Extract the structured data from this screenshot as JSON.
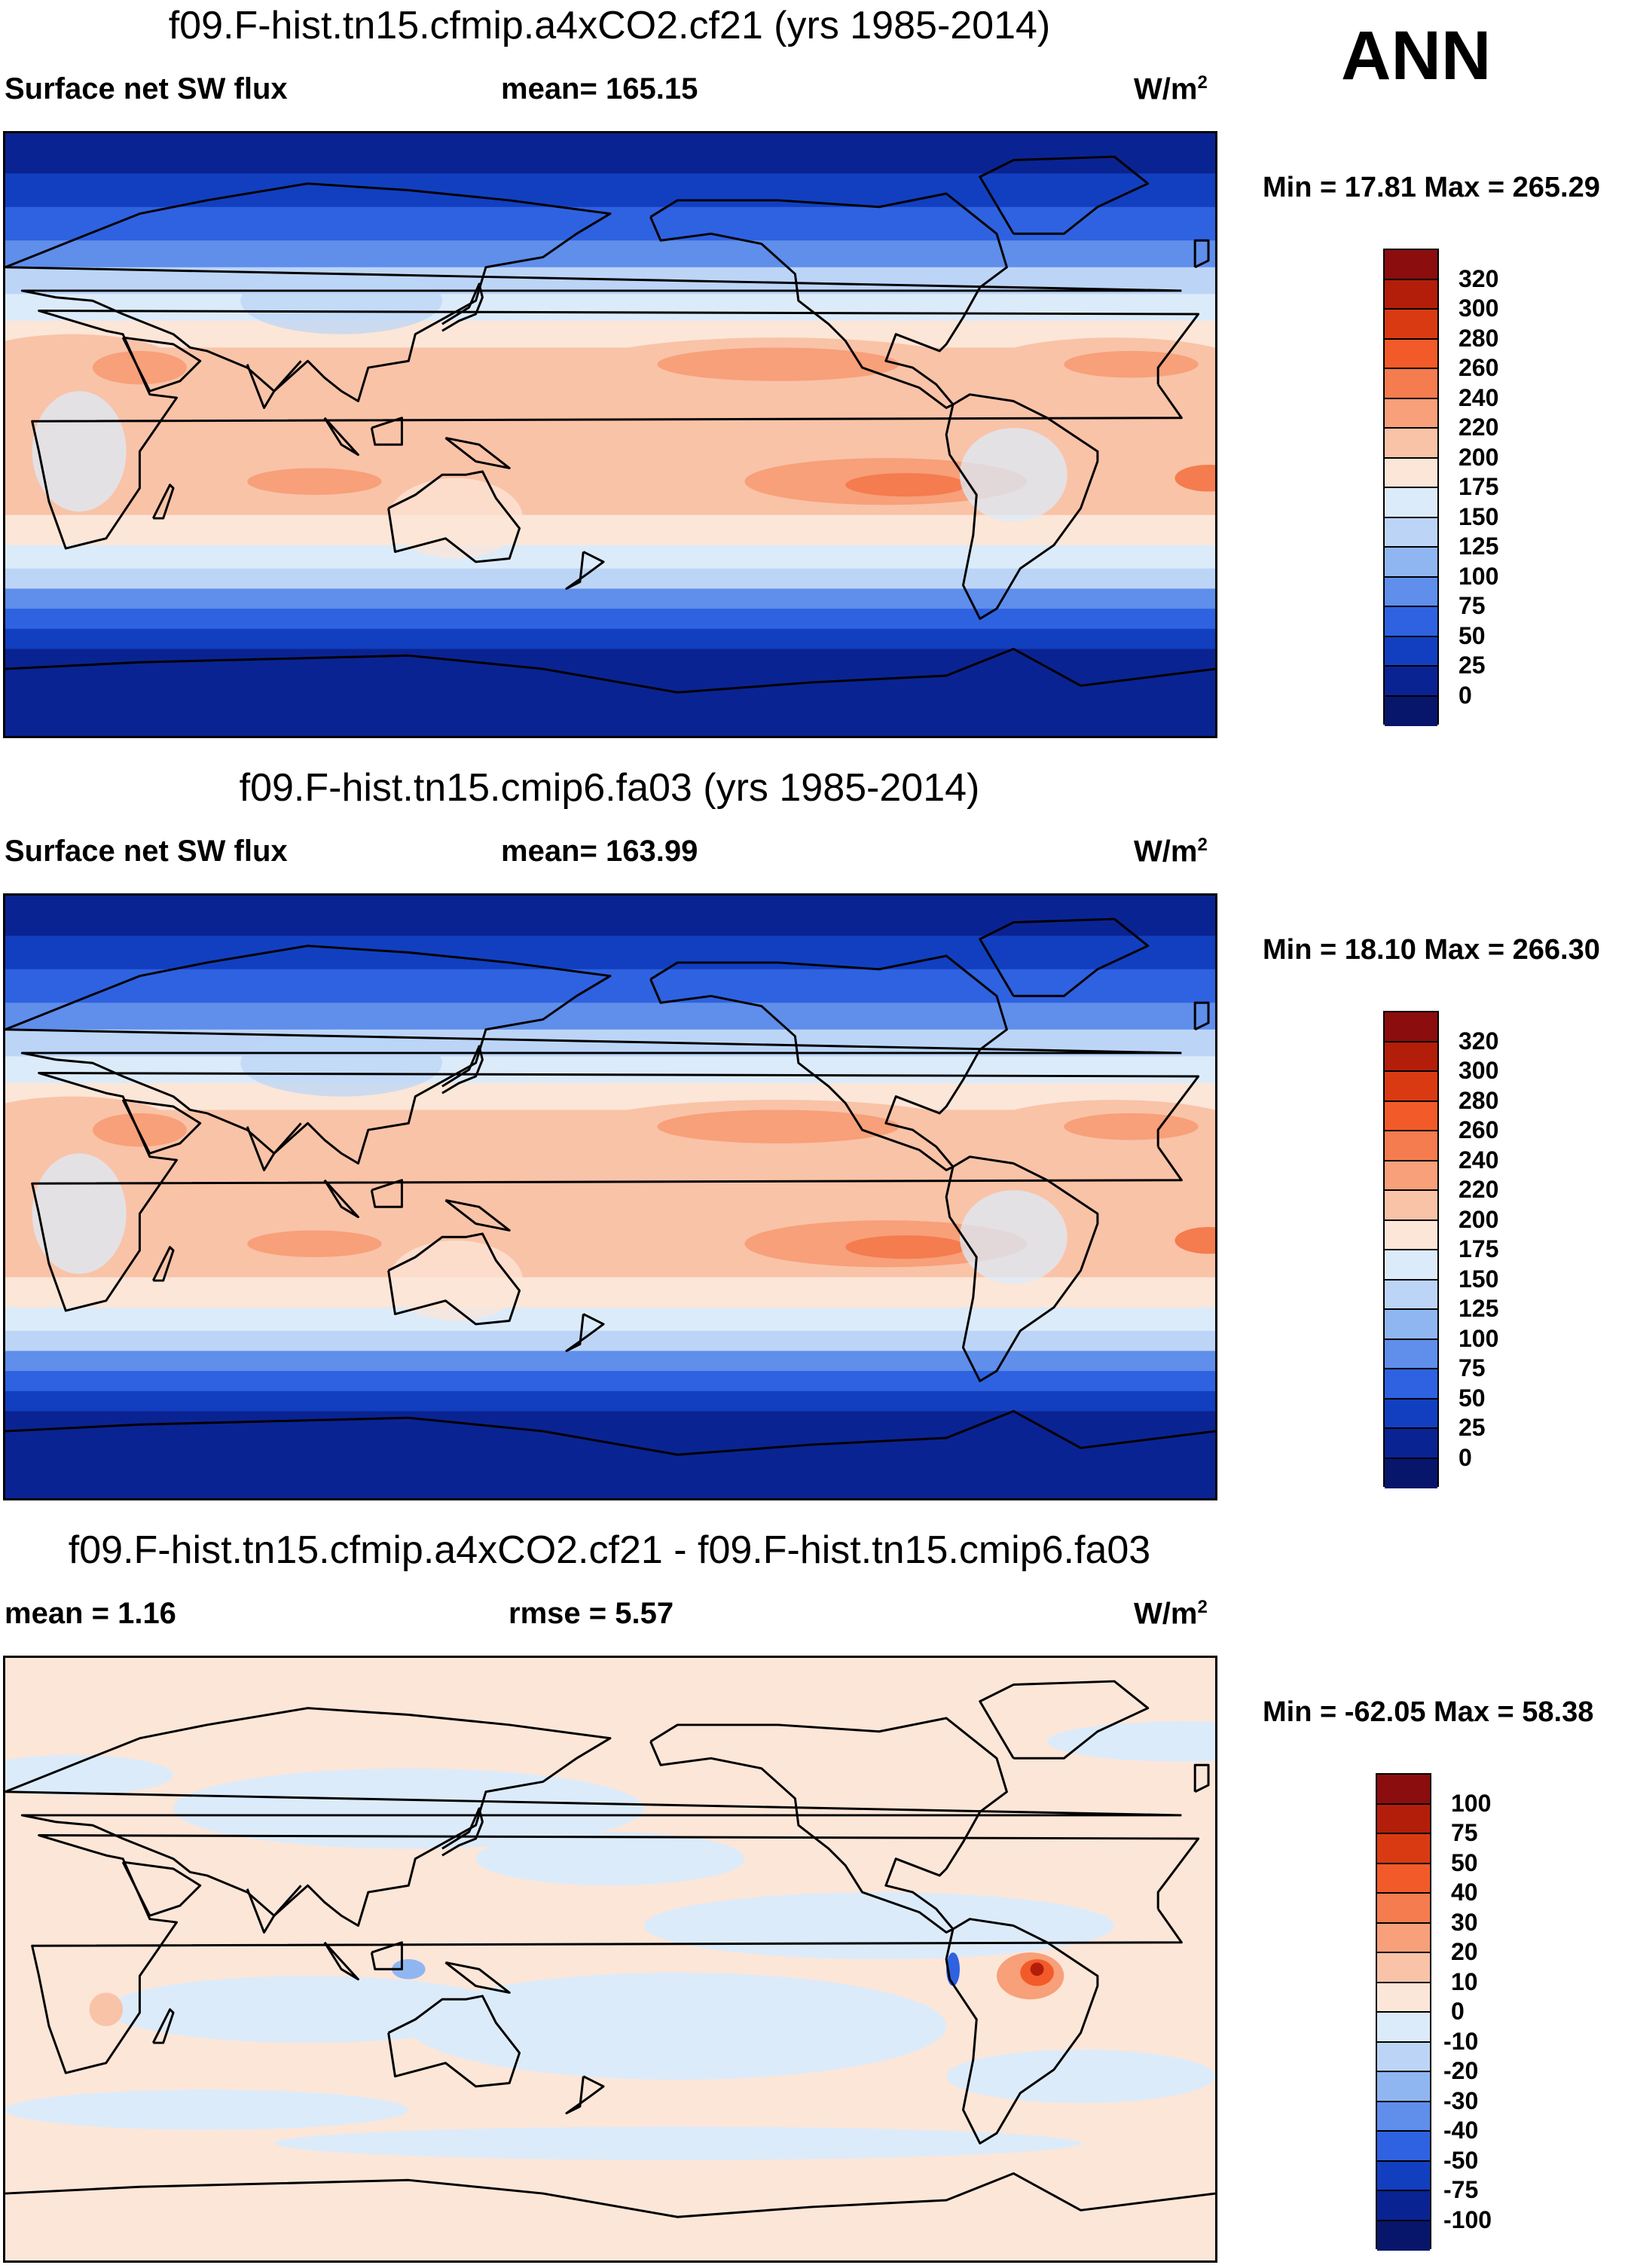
{
  "season": "ANN",
  "panels": [
    {
      "id": "p1",
      "title": "f09.F-hist.tn15.cfmip.a4xCO2.cf21 (yrs 1985-2014)",
      "left_label": "Surface net SW flux",
      "center_label": "mean= 165.15",
      "unit": "W/m",
      "unit_exp": "2",
      "minmax": "Min =  17.81 Max = 265.29",
      "field_kind": "abs",
      "variant": 1,
      "colorbar": {
        "levels": [
          "320",
          "300",
          "280",
          "260",
          "240",
          "220",
          "200",
          "175",
          "150",
          "125",
          "100",
          "75",
          "50",
          "25",
          "0"
        ],
        "colors": [
          "#8B0D0D",
          "#B31E0A",
          "#DA3A12",
          "#F25B29",
          "#F47C4E",
          "#F7A07A",
          "#F9C3A8",
          "#FCE6D8",
          "#DCEBFA",
          "#BCD5F7",
          "#90B6F2",
          "#5F8EEB",
          "#2F62E0",
          "#123FC0",
          "#0A2392",
          "#07166A"
        ]
      }
    },
    {
      "id": "p2",
      "title": "f09.F-hist.tn15.cmip6.fa03 (yrs 1985-2014)",
      "left_label": "Surface net SW flux",
      "center_label": "mean= 163.99",
      "unit": "W/m",
      "unit_exp": "2",
      "minmax": "Min =  18.10 Max = 266.30",
      "field_kind": "abs",
      "variant": 2,
      "colorbar": {
        "levels": [
          "320",
          "300",
          "280",
          "260",
          "240",
          "220",
          "200",
          "175",
          "150",
          "125",
          "100",
          "75",
          "50",
          "25",
          "0"
        ],
        "colors": [
          "#8B0D0D",
          "#B31E0A",
          "#DA3A12",
          "#F25B29",
          "#F47C4E",
          "#F7A07A",
          "#F9C3A8",
          "#FCE6D8",
          "#DCEBFA",
          "#BCD5F7",
          "#90B6F2",
          "#5F8EEB",
          "#2F62E0",
          "#123FC0",
          "#0A2392",
          "#07166A"
        ]
      }
    },
    {
      "id": "p3",
      "title": "f09.F-hist.tn15.cfmip.a4xCO2.cf21 - f09.F-hist.tn15.cmip6.fa03",
      "left_label": "mean =   1.16",
      "center_label": "rmse =   5.57",
      "unit": "W/m",
      "unit_exp": "2",
      "minmax": "Min = -62.05 Max =  58.38",
      "field_kind": "diff",
      "variant": 3,
      "colorbar": {
        "levels": [
          "100",
          "75",
          "50",
          "40",
          "30",
          "20",
          "10",
          "0",
          "-10",
          "-20",
          "-30",
          "-40",
          "-50",
          "-75",
          "-100"
        ],
        "colors": [
          "#8B0D0D",
          "#B31E0A",
          "#DA3A12",
          "#F25B29",
          "#F47C4E",
          "#F7A07A",
          "#F9C3A8",
          "#FCE6D8",
          "#DCEBFA",
          "#BCD5F7",
          "#90B6F2",
          "#5F8EEB",
          "#2F62E0",
          "#123FC0",
          "#0A2392",
          "#07166A"
        ]
      }
    }
  ]
}
